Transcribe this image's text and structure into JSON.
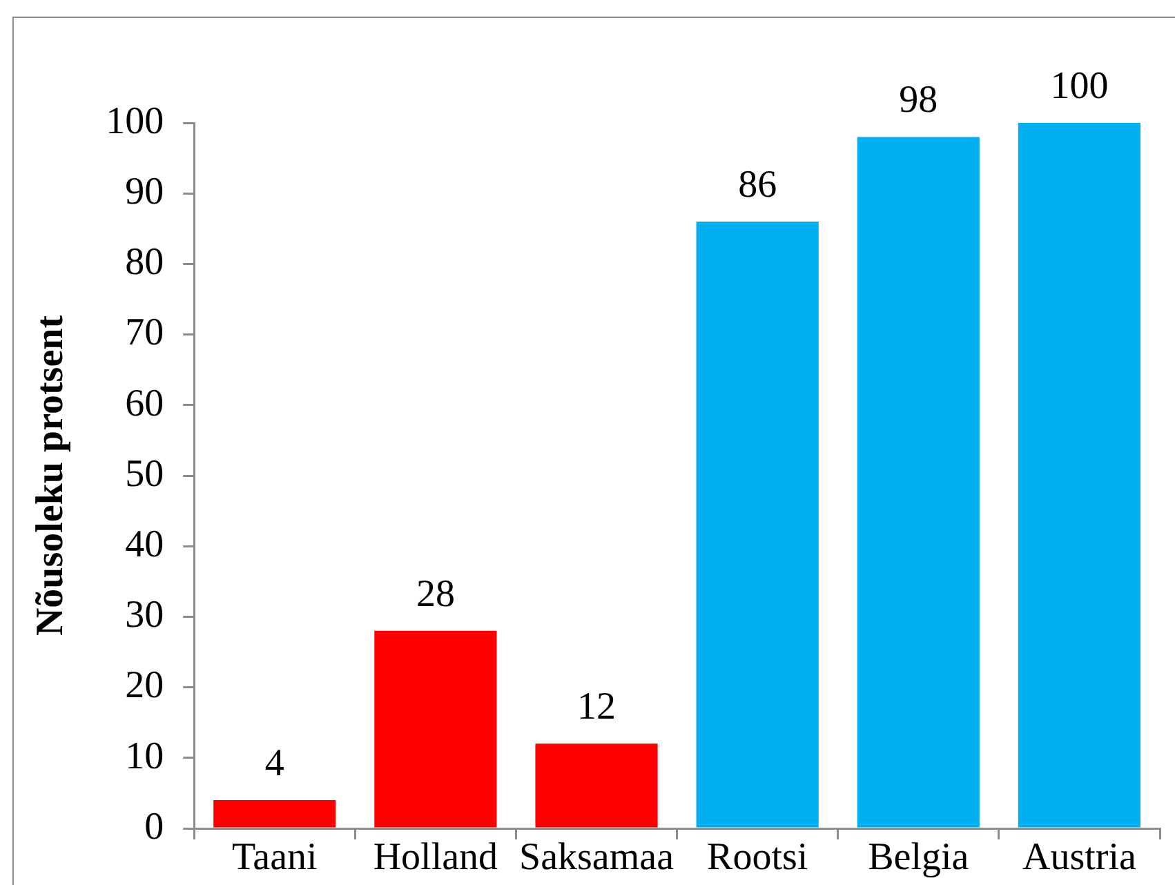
{
  "chart_data": {
    "type": "bar",
    "ylabel": "Nõusoleku protsent",
    "categories": [
      "Taani",
      "Holland",
      "Saksamaa",
      "Rootsi",
      "Belgia",
      "Austria"
    ],
    "values": [
      4,
      28,
      12,
      86,
      98,
      100
    ],
    "colors": [
      "#ff0000",
      "#ff0000",
      "#ff0000",
      "#00b0f0",
      "#00b0f0",
      "#00b0f0"
    ],
    "ylim": [
      0,
      100
    ],
    "yticks": [
      0,
      10,
      20,
      30,
      40,
      50,
      60,
      70,
      80,
      90,
      100
    ],
    "data_labels": true,
    "grid": false,
    "legend": false
  }
}
